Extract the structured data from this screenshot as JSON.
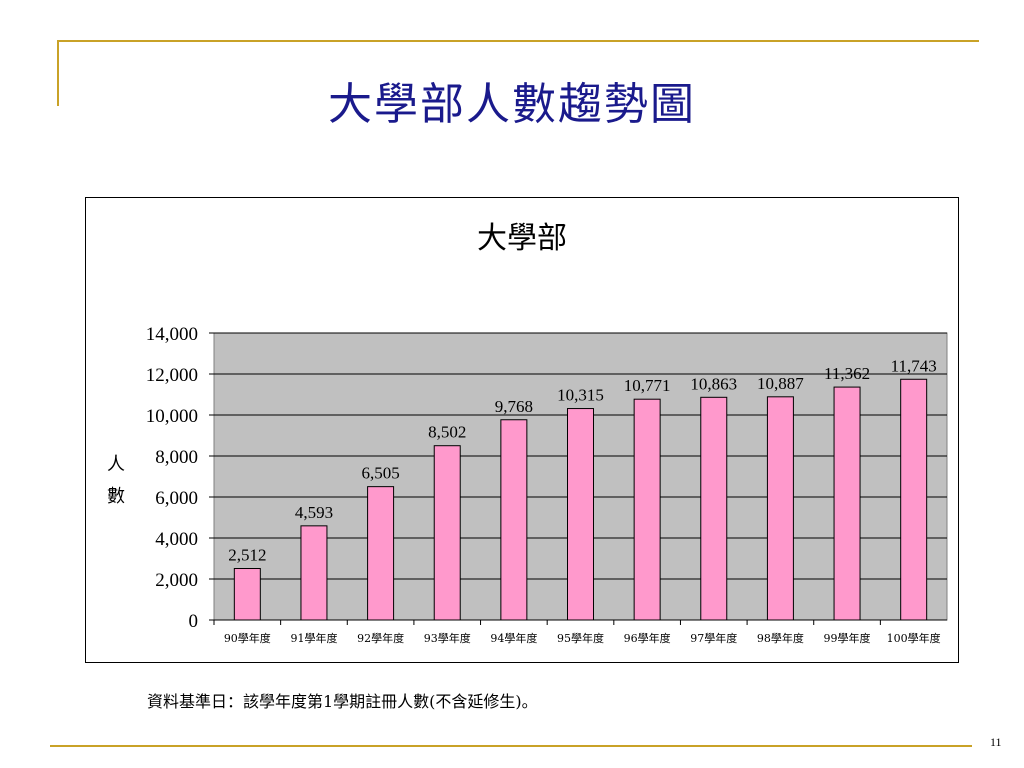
{
  "slide": {
    "title": "大學部人數趨勢圖",
    "footnote": "資料基準日：該學年度第1學期註冊人數(不含延修生)。",
    "page_number": "11"
  },
  "colors": {
    "accent": "#c9a227",
    "title": "#1a1a8c",
    "bar": "#ff99cc",
    "plot_bg": "#c0c0c0"
  },
  "chart_data": {
    "type": "bar",
    "title": "大學部",
    "ylabel": "人數",
    "xlabel": "",
    "categories": [
      "90學年度",
      "91學年度",
      "92學年度",
      "93學年度",
      "94學年度",
      "95學年度",
      "96學年度",
      "97學年度",
      "98學年度",
      "99學年度",
      "100學年度"
    ],
    "values": [
      2512,
      4593,
      6505,
      8502,
      9768,
      10315,
      10771,
      10863,
      10887,
      11362,
      11743
    ],
    "value_labels": [
      "2,512",
      "4,593",
      "6,505",
      "8,502",
      "9,768",
      "10,315",
      "10,771",
      "10,863",
      "10,887",
      "11,362",
      "11,743"
    ],
    "yticks": [
      "0",
      "2,000",
      "4,000",
      "6,000",
      "8,000",
      "10,000",
      "12,000",
      "14,000"
    ],
    "ylim": [
      0,
      14000
    ],
    "grid": true,
    "legend": "none"
  }
}
